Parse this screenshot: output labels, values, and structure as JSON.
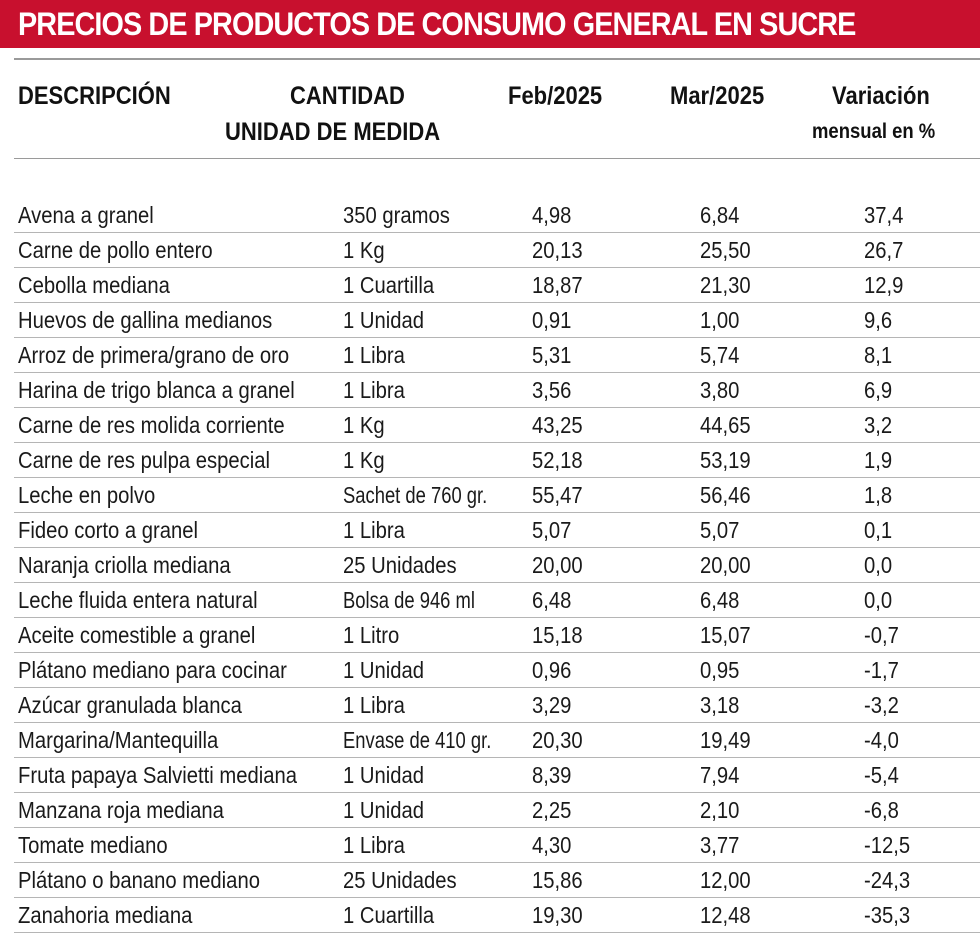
{
  "title": "PRECIOS DE PRODUCTOS DE CONSUMO GENERAL EN SUCRE",
  "colors": {
    "title_bg": "#c8102e",
    "title_text": "#ffffff",
    "rule": "#9a9a9a"
  },
  "headers": {
    "descripcion": "DESCRIPCIÓN",
    "cantidad_line1": "CANTIDAD",
    "cantidad_line2": "UNIDAD DE MEDIDA",
    "feb": "Feb/2025",
    "mar": "Mar/2025",
    "variacion_line1": "Variación",
    "variacion_line2": "mensual en %"
  },
  "rows": [
    {
      "desc": "Avena a granel",
      "cant": "350 gramos",
      "feb": "4,98",
      "mar": "6,84",
      "var": "37,4"
    },
    {
      "desc": "Carne de pollo entero",
      "cant": "1 Kg",
      "feb": "20,13",
      "mar": "25,50",
      "var": "26,7"
    },
    {
      "desc": "Cebolla mediana",
      "cant": "1 Cuartilla",
      "feb": "18,87",
      "mar": "21,30",
      "var": "12,9"
    },
    {
      "desc": "Huevos de gallina medianos",
      "cant": "1 Unidad",
      "feb": "0,91",
      "mar": "1,00",
      "var": "9,6"
    },
    {
      "desc": "Arroz de primera/grano de oro",
      "cant": "1 Libra",
      "feb": "5,31",
      "mar": "5,74",
      "var": "8,1"
    },
    {
      "desc": "Harina de trigo blanca a granel",
      "cant": "1 Libra",
      "feb": "3,56",
      "mar": "3,80",
      "var": "6,9"
    },
    {
      "desc": "Carne de res molida corriente",
      "cant": "1 Kg",
      "feb": "43,25",
      "mar": "44,65",
      "var": "3,2"
    },
    {
      "desc": "Carne de res pulpa especial",
      "cant": "1 Kg",
      "feb": "52,18",
      "mar": "53,19",
      "var": "1,9"
    },
    {
      "desc": "Leche en polvo",
      "cant": "Sachet de 760 gr.",
      "feb": "55,47",
      "mar": "56,46",
      "var": "1,8"
    },
    {
      "desc": "Fideo corto a granel",
      "cant": "1 Libra",
      "feb": "5,07",
      "mar": "5,07",
      "var": "0,1"
    },
    {
      "desc": "Naranja criolla mediana",
      "cant": "25 Unidades",
      "feb": "20,00",
      "mar": "20,00",
      "var": "0,0"
    },
    {
      "desc": "Leche fluida entera natural",
      "cant": "Bolsa de 946 ml",
      "feb": "6,48",
      "mar": "6,48",
      "var": "0,0"
    },
    {
      "desc": "Aceite comestible a granel",
      "cant": "1 Litro",
      "feb": "15,18",
      "mar": "15,07",
      "var": "-0,7"
    },
    {
      "desc": "Plátano mediano para cocinar",
      "cant": "1 Unidad",
      "feb": "0,96",
      "mar": "0,95",
      "var": "-1,7"
    },
    {
      "desc": "Azúcar granulada blanca",
      "cant": "1 Libra",
      "feb": "3,29",
      "mar": "3,18",
      "var": "-3,2"
    },
    {
      "desc": "Margarina/Mantequilla",
      "cant": "Envase de 410 gr.",
      "feb": "20,30",
      "mar": "19,49",
      "var": "-4,0"
    },
    {
      "desc": "Fruta papaya Salvietti mediana",
      "cant": "1 Unidad",
      "feb": "8,39",
      "mar": "7,94",
      "var": "-5,4"
    },
    {
      "desc": "Manzana roja mediana",
      "cant": "1 Unidad",
      "feb": "2,25",
      "mar": "2,10",
      "var": "-6,8"
    },
    {
      "desc": "Tomate mediano",
      "cant": "1 Libra",
      "feb": "4,30",
      "mar": "3,77",
      "var": "-12,5"
    },
    {
      "desc": "Plátano o banano mediano",
      "cant": "25 Unidades",
      "feb": "15,86",
      "mar": "12,00",
      "var": "-24,3"
    },
    {
      "desc": "Zanahoria mediana",
      "cant": "1 Cuartilla",
      "feb": "19,30",
      "mar": "12,48",
      "var": "-35,3"
    }
  ]
}
